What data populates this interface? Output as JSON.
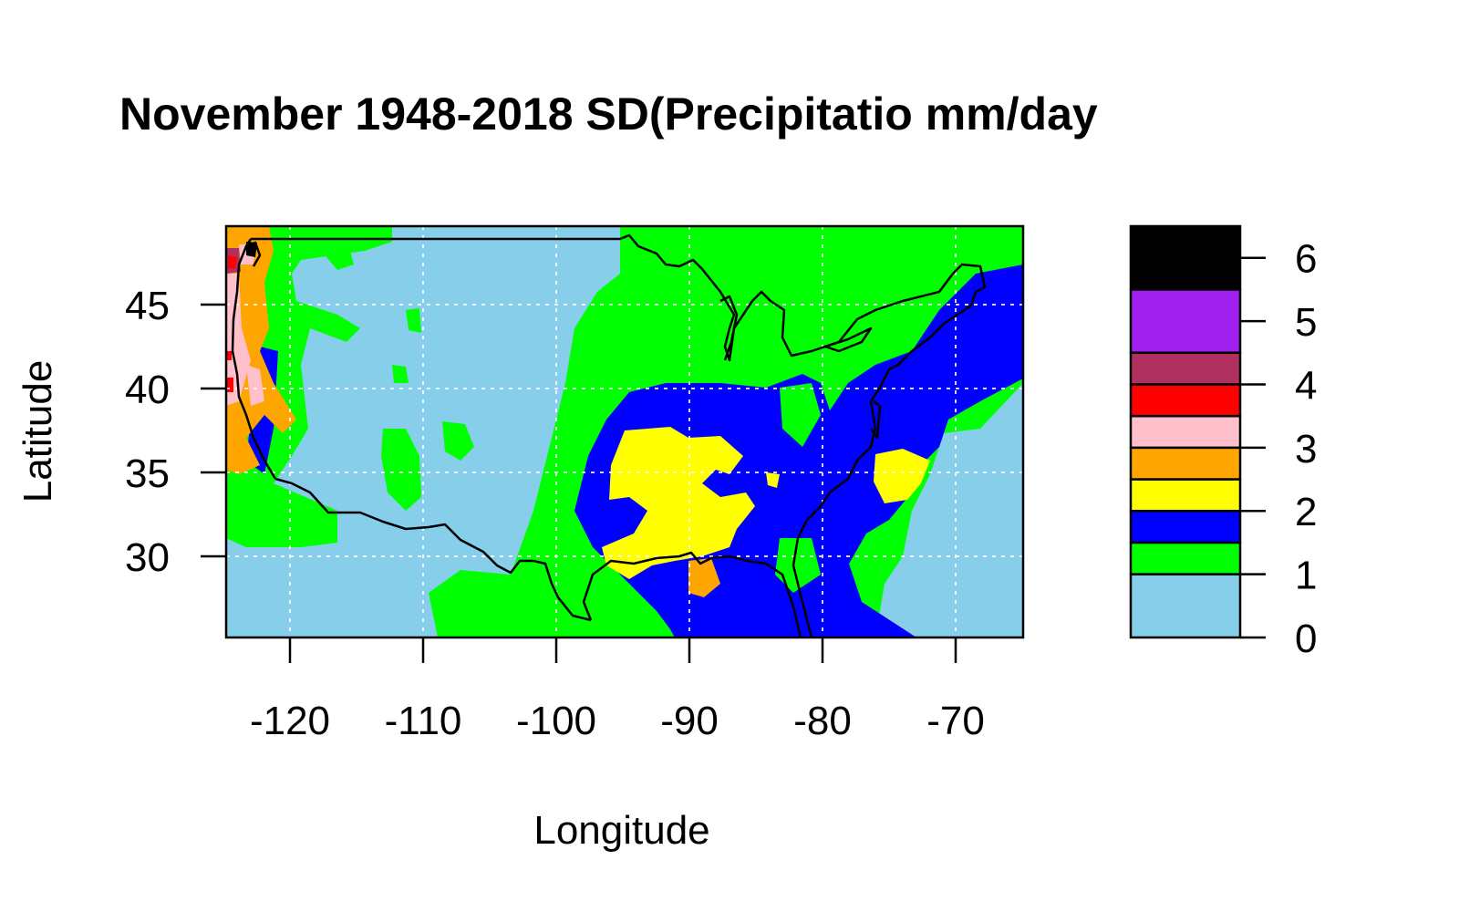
{
  "title": "November 1948-2018 SD(Precipitatio mm/day",
  "xlabel": "Longitude",
  "ylabel": "Latitude",
  "map": {
    "xlim": [
      -125,
      -65
    ],
    "ylim": [
      25,
      49.5
    ],
    "x_ticks": [
      "-120",
      "-110",
      "-100",
      "-90",
      "-80",
      "-70"
    ],
    "y_ticks": [
      "30",
      "35",
      "40",
      "45"
    ],
    "grid": true,
    "grid_style": "dotted-white",
    "basemap": "USA outline",
    "colors": {
      "ocean_fill": "#87CEEB",
      "border_line": "#000000"
    }
  },
  "legend": {
    "ticks": [
      "0",
      "1",
      "2",
      "3",
      "4",
      "5",
      "6"
    ],
    "bins": [
      {
        "range": [
          0,
          1
        ],
        "color": "#87CEEB"
      },
      {
        "range": [
          1,
          1.5
        ],
        "color": "#00FF00"
      },
      {
        "range": [
          1.5,
          2
        ],
        "color": "#0000FF"
      },
      {
        "range": [
          2,
          2.5
        ],
        "color": "#FFFF00"
      },
      {
        "range": [
          2.5,
          3
        ],
        "color": "#FFA500"
      },
      {
        "range": [
          3,
          3.5
        ],
        "color": "#FFC0CB"
      },
      {
        "range": [
          3.5,
          4
        ],
        "color": "#FF0000"
      },
      {
        "range": [
          4,
          4.5
        ],
        "color": "#B03060"
      },
      {
        "range": [
          4.5,
          5.5
        ],
        "color": "#A020F0"
      },
      {
        "range": [
          5.5,
          6.5
        ],
        "color": "#000000"
      }
    ]
  }
}
